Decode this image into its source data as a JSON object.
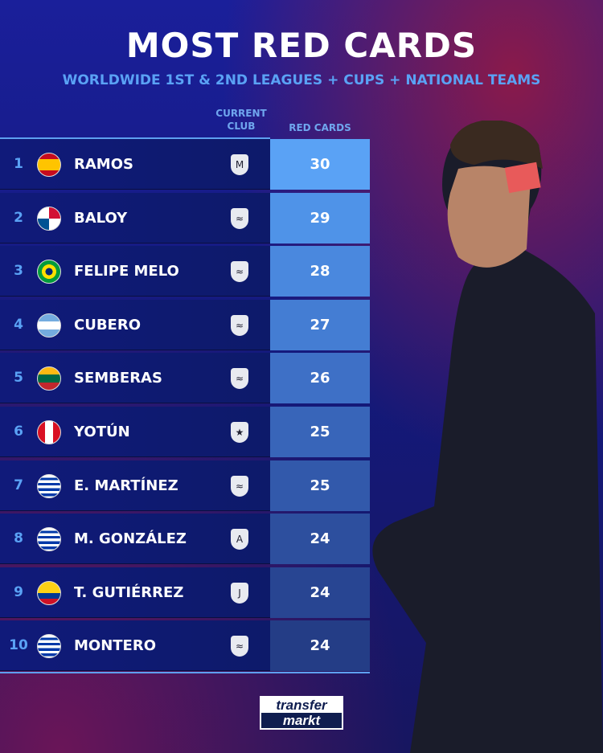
{
  "title": "MOST RED CARDS",
  "subtitle": "WORLDWIDE 1ST & 2ND LEAGUES + CUPS + NATIONAL TEAMS",
  "headers": {
    "club": "CURRENT CLUB",
    "cards": "RED CARDS"
  },
  "rows": [
    {
      "rank": "1",
      "name": "RAMOS",
      "flag": "spain",
      "club": "monterrey-crest",
      "cards": "30",
      "color": "#5aa2f5"
    },
    {
      "rank": "2",
      "name": "BALOY",
      "flag": "panama",
      "club": "retired-boots-icon",
      "cards": "29",
      "color": "#4f93e8"
    },
    {
      "rank": "3",
      "name": "FELIPE MELO",
      "flag": "brazil",
      "club": "retired-boots-icon",
      "cards": "28",
      "color": "#4a88de"
    },
    {
      "rank": "4",
      "name": "CUBERO",
      "flag": "argentina",
      "club": "retired-boots-icon",
      "cards": "27",
      "color": "#447dd3"
    },
    {
      "rank": "5",
      "name": "SEMBERAS",
      "flag": "lithuania",
      "club": "retired-boots-icon",
      "cards": "26",
      "color": "#3e70c6"
    },
    {
      "rank": "6",
      "name": "YOTÚN",
      "flag": "peru",
      "club": "sporting-cristal-crest",
      "cards": "25",
      "color": "#3865b9"
    },
    {
      "rank": "7",
      "name": "E. MARTÍNEZ",
      "flag": "uruguay",
      "club": "retired-boots-icon",
      "cards": "25",
      "color": "#3259ab"
    },
    {
      "rank": "8",
      "name": "M. GONZÁLEZ",
      "flag": "uruguay",
      "club": "atlas-crest",
      "cards": "24",
      "color": "#2d4f9e"
    },
    {
      "rank": "9",
      "name": "T. GUTIÉRREZ",
      "flag": "colombia",
      "club": "junior-crest",
      "cards": "24",
      "color": "#284592"
    },
    {
      "rank": "10",
      "name": "MONTERO",
      "flag": "uruguay",
      "club": "retired-boots-icon",
      "cards": "24",
      "color": "#243d86"
    }
  ],
  "brand": "transfermarkt"
}
